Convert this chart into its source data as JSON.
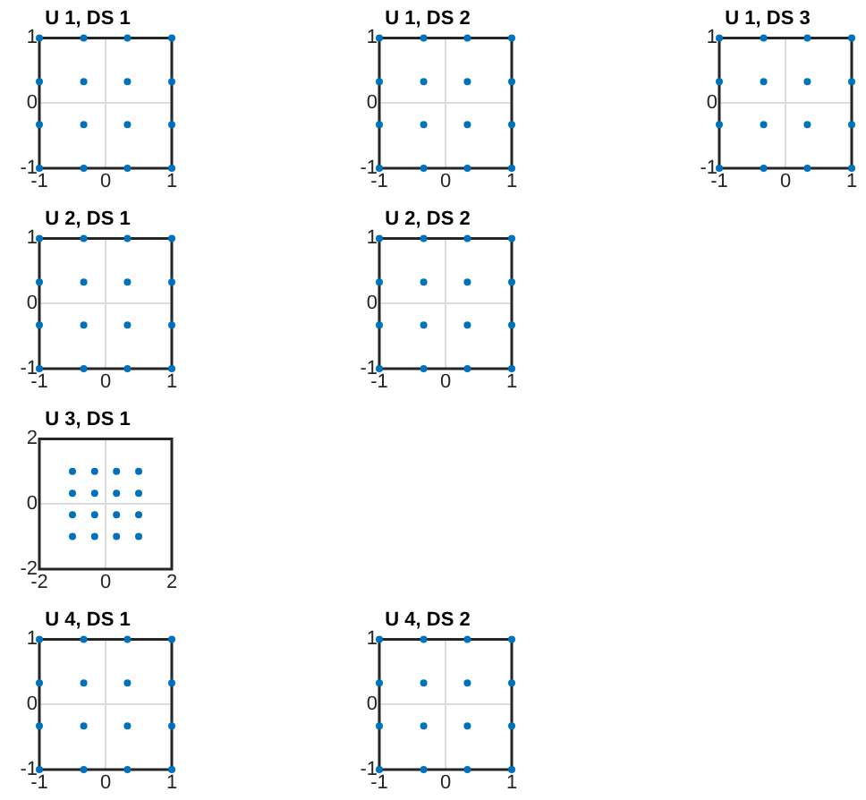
{
  "chart_data": [
    {
      "type": "scatter",
      "title": "U 1, DS 1",
      "x": [
        -1,
        -0.33,
        0.33,
        1,
        -1,
        -0.33,
        0.33,
        1,
        -1,
        -0.33,
        0.33,
        1,
        -1,
        -0.33,
        0.33,
        1
      ],
      "values": [
        1,
        1,
        1,
        1,
        0.33,
        0.33,
        0.33,
        0.33,
        -0.33,
        -0.33,
        -0.33,
        -0.33,
        -1,
        -1,
        -1,
        -1
      ],
      "color": "#0072bd",
      "marker": "circle",
      "xlim": [
        -1,
        1
      ],
      "ylim": [
        -1,
        1
      ],
      "xticks": [
        -1,
        0,
        1
      ],
      "yticks": [
        -1,
        0,
        1
      ],
      "grid": true
    },
    {
      "type": "scatter",
      "title": "U 1, DS 2",
      "x": [
        -1,
        -0.33,
        0.33,
        1,
        -1,
        -0.33,
        0.33,
        1,
        -1,
        -0.33,
        0.33,
        1,
        -1,
        -0.33,
        0.33,
        1
      ],
      "values": [
        1,
        1,
        1,
        1,
        0.33,
        0.33,
        0.33,
        0.33,
        -0.33,
        -0.33,
        -0.33,
        -0.33,
        -1,
        -1,
        -1,
        -1
      ],
      "color": "#0072bd",
      "marker": "circle",
      "xlim": [
        -1,
        1
      ],
      "ylim": [
        -1,
        1
      ],
      "xticks": [
        -1,
        0,
        1
      ],
      "yticks": [
        -1,
        0,
        1
      ],
      "grid": true
    },
    {
      "type": "scatter",
      "title": "U 1, DS 3",
      "x": [
        -1,
        -0.33,
        0.33,
        1,
        -1,
        -0.33,
        0.33,
        1,
        -1,
        -0.33,
        0.33,
        1,
        -1,
        -0.33,
        0.33,
        1
      ],
      "values": [
        1,
        1,
        1,
        1,
        0.33,
        0.33,
        0.33,
        0.33,
        -0.33,
        -0.33,
        -0.33,
        -0.33,
        -1,
        -1,
        -1,
        -1
      ],
      "color": "#0072bd",
      "marker": "circle",
      "xlim": [
        -1,
        1
      ],
      "ylim": [
        -1,
        1
      ],
      "xticks": [
        -1,
        0,
        1
      ],
      "yticks": [
        -1,
        0,
        1
      ],
      "grid": true
    },
    {
      "type": "scatter",
      "title": "U 2, DS 1",
      "x": [
        -1,
        -0.33,
        0.33,
        1,
        -1,
        -0.33,
        0.33,
        1,
        -1,
        -0.33,
        0.33,
        1,
        -1,
        -0.33,
        0.33,
        1
      ],
      "values": [
        1,
        1,
        1,
        1,
        0.33,
        0.33,
        0.33,
        0.33,
        -0.33,
        -0.33,
        -0.33,
        -0.33,
        -1,
        -1,
        -1,
        -1
      ],
      "color": "#0072bd",
      "marker": "circle",
      "xlim": [
        -1,
        1
      ],
      "ylim": [
        -1,
        1
      ],
      "xticks": [
        -1,
        0,
        1
      ],
      "yticks": [
        -1,
        0,
        1
      ],
      "grid": true
    },
    {
      "type": "scatter",
      "title": "U 2, DS 2",
      "x": [
        -1,
        -0.33,
        0.33,
        1,
        -1,
        -0.33,
        0.33,
        1,
        -1,
        -0.33,
        0.33,
        1,
        -1,
        -0.33,
        0.33,
        1
      ],
      "values": [
        1,
        1,
        1,
        1,
        0.33,
        0.33,
        0.33,
        0.33,
        -0.33,
        -0.33,
        -0.33,
        -0.33,
        -1,
        -1,
        -1,
        -1
      ],
      "color": "#0072bd",
      "marker": "circle",
      "xlim": [
        -1,
        1
      ],
      "ylim": [
        -1,
        1
      ],
      "xticks": [
        -1,
        0,
        1
      ],
      "yticks": [
        -1,
        0,
        1
      ],
      "grid": true
    },
    {
      "type": "scatter",
      "title": "U 3, DS 1",
      "x": [
        -1,
        -0.33,
        0.33,
        1,
        -1,
        -0.33,
        0.33,
        1,
        -1,
        -0.33,
        0.33,
        1,
        -1,
        -0.33,
        0.33,
        1
      ],
      "values": [
        1,
        1,
        1,
        1,
        0.33,
        0.33,
        0.33,
        0.33,
        -0.33,
        -0.33,
        -0.33,
        -0.33,
        -1,
        -1,
        -1,
        -1
      ],
      "color": "#0072bd",
      "marker": "circle",
      "xlim": [
        -2,
        2
      ],
      "ylim": [
        -2,
        2
      ],
      "xticks": [
        -2,
        0,
        2
      ],
      "yticks": [
        -2,
        0,
        2
      ],
      "grid": true
    },
    {
      "type": "scatter",
      "title": "U 4, DS 1",
      "x": [
        -1,
        -0.33,
        0.33,
        1,
        -1,
        -0.33,
        0.33,
        1,
        -1,
        -0.33,
        0.33,
        1,
        -1,
        -0.33,
        0.33,
        1
      ],
      "values": [
        1,
        1,
        1,
        1,
        0.33,
        0.33,
        0.33,
        0.33,
        -0.33,
        -0.33,
        -0.33,
        -0.33,
        -1,
        -1,
        -1,
        -1
      ],
      "color": "#0072bd",
      "marker": "circle",
      "xlim": [
        -1,
        1
      ],
      "ylim": [
        -1,
        1
      ],
      "xticks": [
        -1,
        0,
        1
      ],
      "yticks": [
        -1,
        0,
        1
      ],
      "grid": true
    },
    {
      "type": "scatter",
      "title": "U 4, DS 2",
      "x": [
        -1,
        -0.33,
        0.33,
        1,
        -1,
        -0.33,
        0.33,
        1,
        -1,
        -0.33,
        0.33,
        1,
        -1,
        -0.33,
        0.33,
        1
      ],
      "values": [
        1,
        1,
        1,
        1,
        0.33,
        0.33,
        0.33,
        0.33,
        -0.33,
        -0.33,
        -0.33,
        -0.33,
        -1,
        -1,
        -1,
        -1
      ],
      "color": "#0072bd",
      "marker": "circle",
      "xlim": [
        -1,
        1
      ],
      "ylim": [
        -1,
        1
      ],
      "xticks": [
        -1,
        0,
        1
      ],
      "yticks": [
        -1,
        0,
        1
      ],
      "grid": true
    }
  ]
}
